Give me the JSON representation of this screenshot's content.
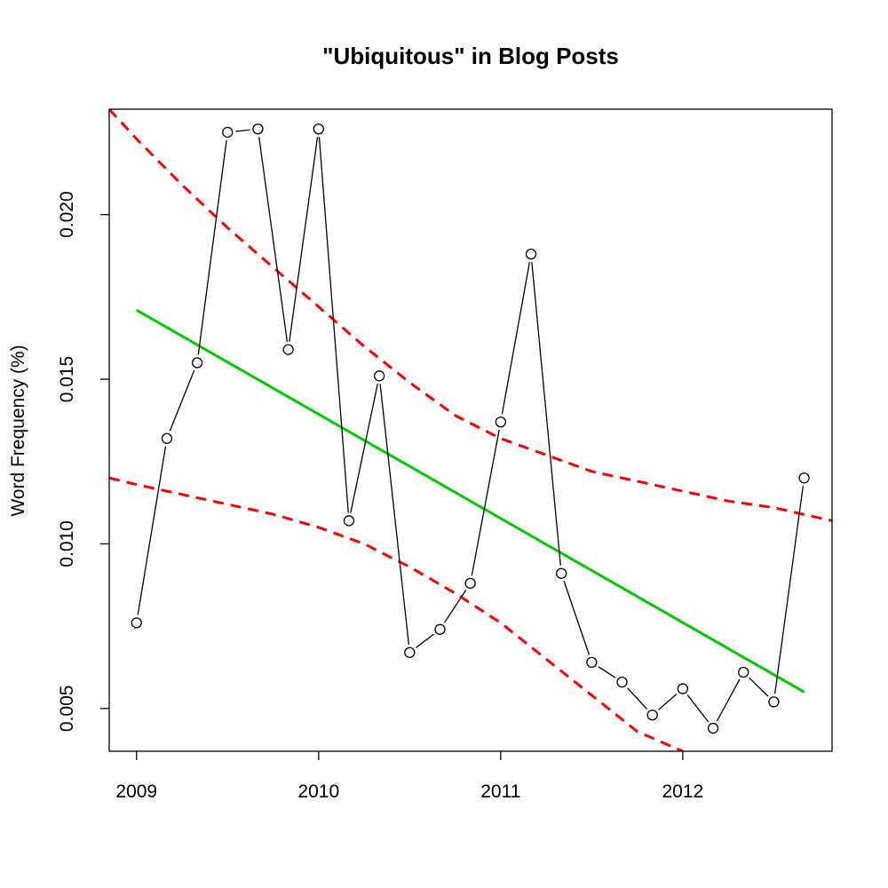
{
  "chart_data": {
    "type": "line",
    "title": "\"Ubiquitous\" in Blog Posts",
    "xlabel": "",
    "ylabel": "Word Frequency (%)",
    "xlim": [
      2008.85,
      2012.82
    ],
    "ylim": [
      0.0037,
      0.0232
    ],
    "x_ticks": [
      2009,
      2010,
      2011,
      2012
    ],
    "x_tick_labels": [
      "2009",
      "2010",
      "2011",
      "2012"
    ],
    "y_ticks": [
      0.005,
      0.01,
      0.015,
      0.02
    ],
    "y_tick_labels": [
      "0.005",
      "0.010",
      "0.015",
      "0.020"
    ],
    "grid": false,
    "series": [
      {
        "kind": "observed",
        "color": "#000000",
        "markers": "open-circle",
        "x": [
          2009.0,
          2009.1667,
          2009.3333,
          2009.5,
          2009.6667,
          2009.8333,
          2010.0,
          2010.1667,
          2010.3333,
          2010.5,
          2010.6667,
          2010.8333,
          2011.0,
          2011.1667,
          2011.3333,
          2011.5,
          2011.6667,
          2011.8333,
          2012.0,
          2012.1667,
          2012.3333,
          2012.5,
          2012.6667
        ],
        "y": [
          0.0076,
          0.0132,
          0.0155,
          0.0225,
          0.0226,
          0.0159,
          0.0226,
          0.0107,
          0.0151,
          0.0067,
          0.0074,
          0.0088,
          0.0137,
          0.0188,
          0.0091,
          0.0064,
          0.0058,
          0.0048,
          0.0056,
          0.0044,
          0.0061,
          0.0052,
          0.012
        ],
        "gaps_after_index": [
          3,
          9,
          15,
          20
        ]
      },
      {
        "kind": "trend",
        "color": "#00cc00",
        "x": [
          2009.0,
          2012.6667
        ],
        "y": [
          0.0171,
          0.0055
        ]
      },
      {
        "kind": "upper-bound",
        "color": "#ff0000",
        "dashed": true,
        "x": [
          2008.85,
          2009.0,
          2009.25,
          2009.5,
          2009.75,
          2010.0,
          2010.25,
          2010.5,
          2010.75,
          2011.0,
          2011.25,
          2011.5,
          2011.75,
          2012.0,
          2012.25,
          2012.5,
          2012.82
        ],
        "y": [
          0.0232,
          0.0223,
          0.0209,
          0.0196,
          0.0184,
          0.0172,
          0.016,
          0.0149,
          0.0139,
          0.0132,
          0.0127,
          0.0122,
          0.0119,
          0.0116,
          0.0113,
          0.0111,
          0.0107
        ]
      },
      {
        "kind": "lower-bound",
        "color": "#ff0000",
        "dashed": true,
        "x": [
          2008.85,
          2009.0,
          2009.25,
          2009.5,
          2009.75,
          2010.0,
          2010.25,
          2010.5,
          2010.75,
          2011.0,
          2011.25,
          2011.5,
          2011.75,
          2012.0
        ],
        "y": [
          0.012,
          0.0118,
          0.0115,
          0.0112,
          0.0109,
          0.0105,
          0.01,
          0.0093,
          0.0085,
          0.0076,
          0.0065,
          0.0054,
          0.0043,
          0.0037
        ]
      }
    ]
  }
}
